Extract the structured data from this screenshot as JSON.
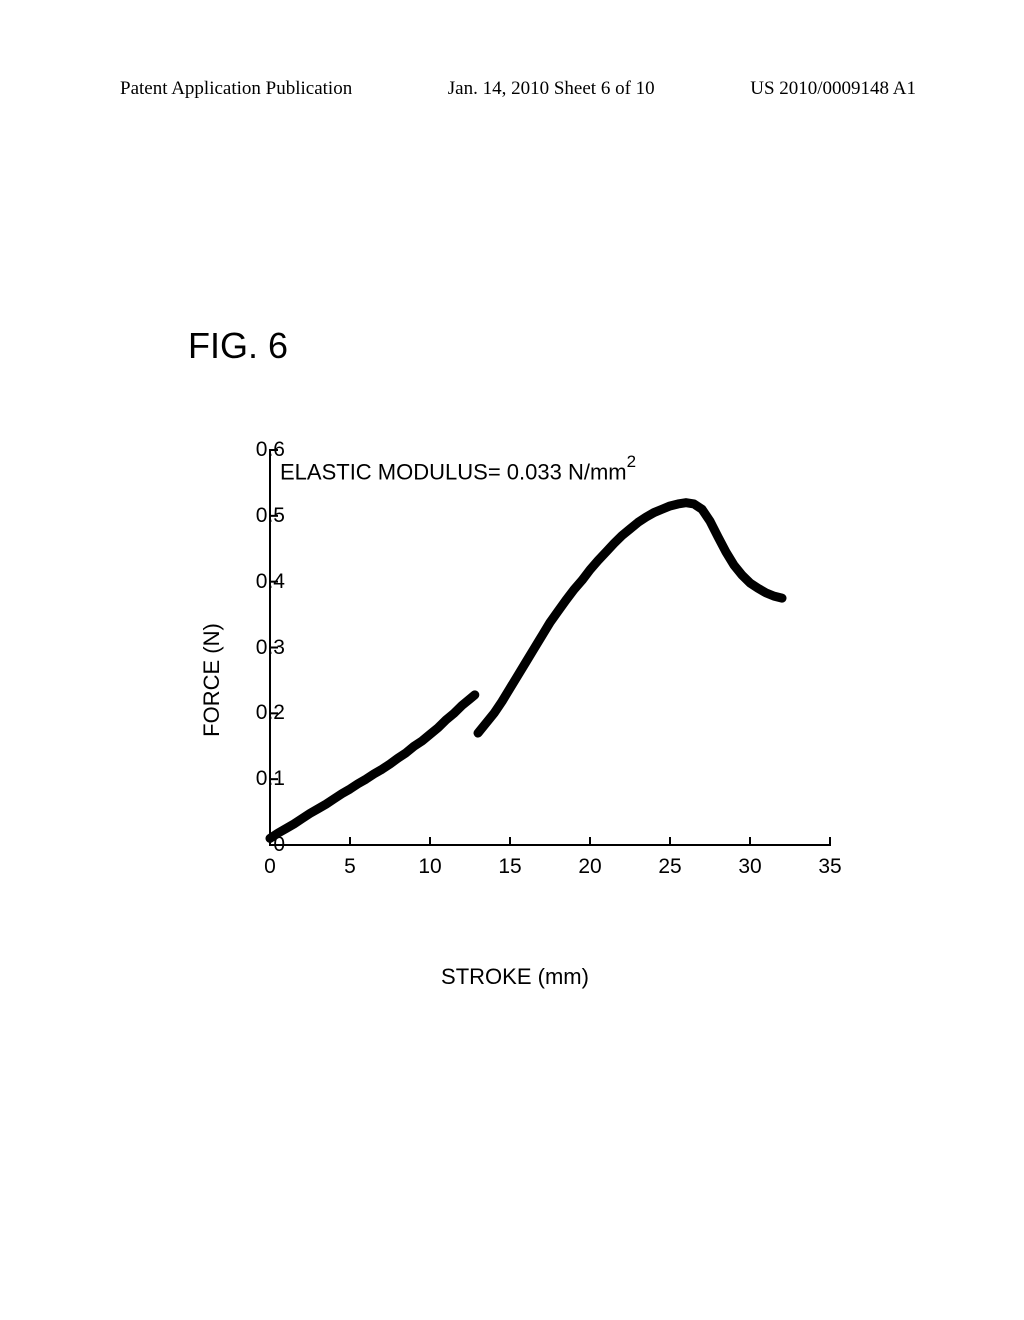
{
  "header": {
    "left": "Patent Application Publication",
    "center": "Jan. 14, 2010  Sheet 6 of 10",
    "right": "US 2010/0009148 A1"
  },
  "figure_label": "FIG. 6",
  "chart": {
    "type": "scatter-line",
    "annotation_prefix": "ELASTIC MODULUS= 0.033 N/mm",
    "annotation_exp": "2",
    "xlabel": "STROKE (mm)",
    "ylabel": "FORCE (N)",
    "xlim": [
      0,
      35
    ],
    "ylim": [
      0,
      0.6
    ],
    "xticks": [
      0,
      5,
      10,
      15,
      20,
      25,
      30,
      35
    ],
    "yticks": [
      0,
      0.1,
      0.2,
      0.3,
      0.4,
      0.5,
      0.6
    ],
    "ytick_labels": [
      "0",
      "0.1",
      "0.2",
      "0.3",
      "0.4",
      "0.5",
      "0.6"
    ],
    "xtick_labels": [
      "0",
      "5",
      "10",
      "15",
      "20",
      "25",
      "30",
      "35"
    ],
    "background_color": "#ffffff",
    "axis_color": "#000000",
    "data_color": "#000000",
    "axis_linewidth": 2,
    "tick_length": 8,
    "series": [
      {
        "name": "segment1",
        "points": [
          [
            0,
            0.01
          ],
          [
            0.5,
            0.018
          ],
          [
            1,
            0.025
          ],
          [
            1.5,
            0.032
          ],
          [
            2,
            0.04
          ],
          [
            2.5,
            0.048
          ],
          [
            3,
            0.055
          ],
          [
            3.5,
            0.062
          ],
          [
            4,
            0.07
          ],
          [
            4.5,
            0.078
          ],
          [
            5,
            0.085
          ],
          [
            5.5,
            0.093
          ],
          [
            6,
            0.1
          ],
          [
            6.5,
            0.108
          ],
          [
            7,
            0.115
          ],
          [
            7.5,
            0.123
          ],
          [
            8,
            0.132
          ],
          [
            8.5,
            0.14
          ],
          [
            9,
            0.15
          ],
          [
            9.5,
            0.158
          ],
          [
            10,
            0.168
          ],
          [
            10.5,
            0.178
          ],
          [
            11,
            0.19
          ],
          [
            11.5,
            0.2
          ],
          [
            12,
            0.212
          ],
          [
            12.5,
            0.222
          ],
          [
            12.8,
            0.228
          ]
        ]
      },
      {
        "name": "segment2",
        "points": [
          [
            13,
            0.17
          ],
          [
            13.5,
            0.185
          ],
          [
            14,
            0.2
          ],
          [
            14.5,
            0.218
          ],
          [
            15,
            0.238
          ],
          [
            15.5,
            0.258
          ],
          [
            16,
            0.278
          ],
          [
            16.5,
            0.298
          ],
          [
            17,
            0.318
          ],
          [
            17.5,
            0.338
          ],
          [
            18,
            0.355
          ],
          [
            18.5,
            0.372
          ],
          [
            19,
            0.388
          ],
          [
            19.5,
            0.402
          ],
          [
            20,
            0.418
          ],
          [
            20.5,
            0.432
          ],
          [
            21,
            0.445
          ],
          [
            21.5,
            0.458
          ],
          [
            22,
            0.47
          ],
          [
            22.5,
            0.48
          ],
          [
            23,
            0.49
          ],
          [
            23.5,
            0.498
          ],
          [
            24,
            0.505
          ],
          [
            24.5,
            0.51
          ],
          [
            25,
            0.515
          ],
          [
            25.5,
            0.518
          ],
          [
            26,
            0.52
          ],
          [
            26.5,
            0.518
          ],
          [
            27,
            0.51
          ],
          [
            27.5,
            0.492
          ],
          [
            28,
            0.468
          ],
          [
            28.5,
            0.445
          ],
          [
            29,
            0.425
          ],
          [
            29.5,
            0.41
          ],
          [
            30,
            0.398
          ],
          [
            30.5,
            0.39
          ],
          [
            31,
            0.383
          ],
          [
            31.5,
            0.378
          ],
          [
            32,
            0.375
          ]
        ]
      }
    ]
  }
}
